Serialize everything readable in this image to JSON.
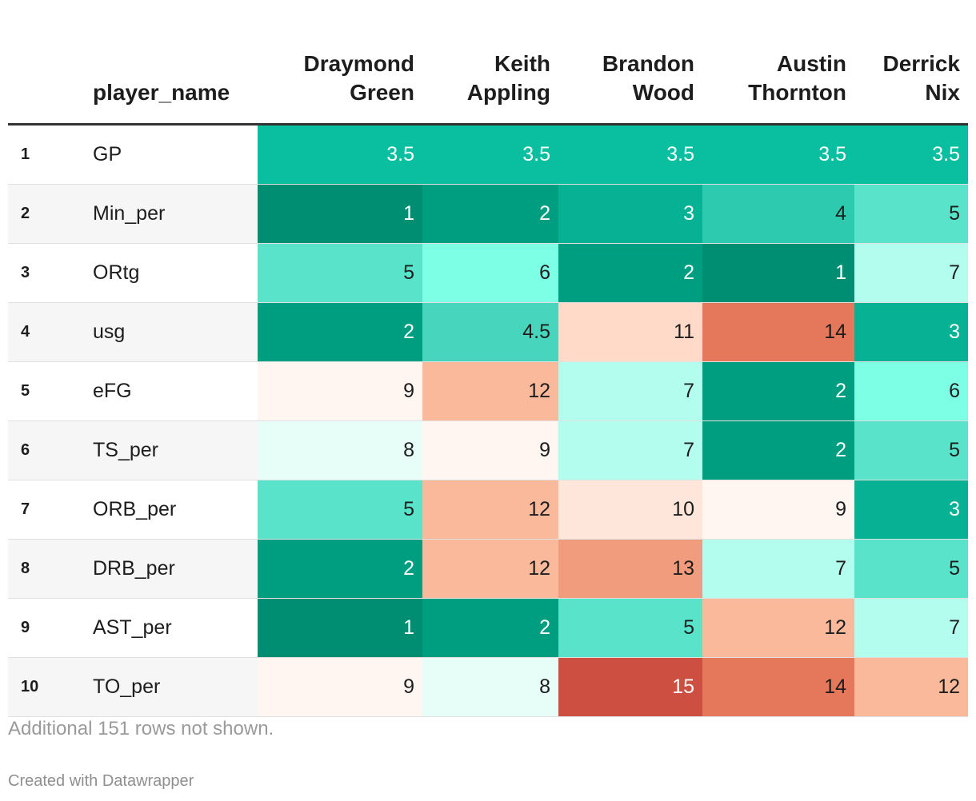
{
  "chart_data": {
    "type": "table",
    "header": {
      "name_column": "player_name",
      "players": [
        {
          "line1": "Draymond",
          "line2": "Green"
        },
        {
          "line1": "Keith",
          "line2": "Appling"
        },
        {
          "line1": "Brandon",
          "line2": "Wood"
        },
        {
          "line1": "Austin",
          "line2": "Thornton"
        },
        {
          "line1": "Derrick",
          "line2": "Nix"
        }
      ]
    },
    "rows": [
      {
        "rank": "1",
        "name": "GP",
        "values": [
          "3.5",
          "3.5",
          "3.5",
          "3.5",
          "3.5"
        ]
      },
      {
        "rank": "2",
        "name": "Min_per",
        "values": [
          "1",
          "2",
          "3",
          "4",
          "5"
        ]
      },
      {
        "rank": "3",
        "name": "ORtg",
        "values": [
          "5",
          "6",
          "2",
          "1",
          "7"
        ]
      },
      {
        "rank": "4",
        "name": "usg",
        "values": [
          "2",
          "4.5",
          "11",
          "14",
          "3"
        ]
      },
      {
        "rank": "5",
        "name": "eFG",
        "values": [
          "9",
          "12",
          "7",
          "2",
          "6"
        ]
      },
      {
        "rank": "6",
        "name": "TS_per",
        "values": [
          "8",
          "9",
          "7",
          "2",
          "5"
        ]
      },
      {
        "rank": "7",
        "name": "ORB_per",
        "values": [
          "5",
          "12",
          "10",
          "9",
          "3"
        ]
      },
      {
        "rank": "8",
        "name": "DRB_per",
        "values": [
          "2",
          "12",
          "13",
          "7",
          "5"
        ]
      },
      {
        "rank": "9",
        "name": "AST_per",
        "values": [
          "1",
          "2",
          "5",
          "12",
          "7"
        ]
      },
      {
        "rank": "10",
        "name": "TO_per",
        "values": [
          "9",
          "8",
          "15",
          "14",
          "12"
        ]
      }
    ],
    "color_scale": {
      "1": "#008e72",
      "2": "#009e81",
      "3": "#07b193",
      "3.5": "#0abf9f",
      "4": "#2ecab0",
      "4.5": "#47d6bd",
      "5": "#59e3cb",
      "6": "#7dffe6",
      "7": "#b3fdee",
      "8": "#e6fdf8",
      "9": "#fff6f2",
      "10": "#ffe6da",
      "11": "#ffdac8",
      "12": "#f9b99a",
      "13": "#f29c7e",
      "14": "#e5775b",
      "15": "#cd4f41"
    },
    "light_text_color": "#ffffff",
    "dark_text_color": "#1d1d1d"
  },
  "footer": {
    "note": "Additional 151 rows not shown.",
    "credit": "Created with Datawrapper"
  }
}
